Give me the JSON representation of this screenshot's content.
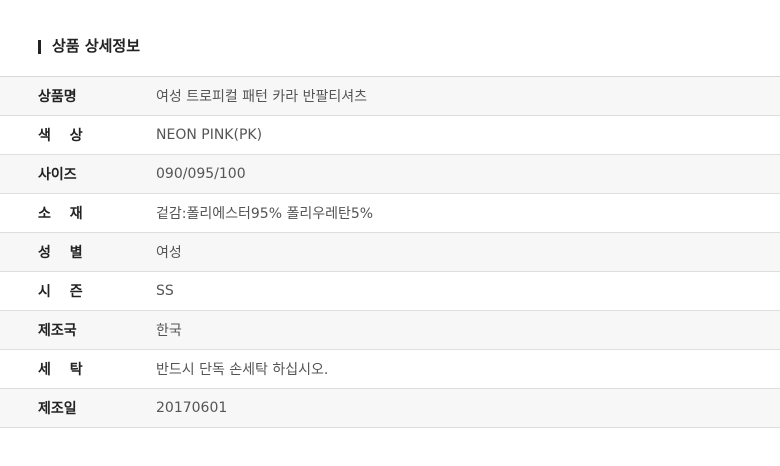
{
  "header": {
    "title": "상품 상세정보"
  },
  "table": {
    "rows": [
      [
        "상품명",
        "여성 트로피컬 패턴 카라 반팔티셔츠"
      ],
      [
        "색 상",
        "NEON PINK(PK)"
      ],
      [
        "사이즈",
        "090/095/100"
      ],
      [
        "소 재",
        "겉감:폴리에스터95% 폴리우레탄5%"
      ],
      [
        "성 별",
        "여성"
      ],
      [
        "시 즌",
        "SS"
      ],
      [
        "제조국",
        "한국"
      ],
      [
        "세 탁",
        "반드시 단독 손세탁 하십시오."
      ],
      [
        "제조일",
        "20170601"
      ]
    ]
  }
}
